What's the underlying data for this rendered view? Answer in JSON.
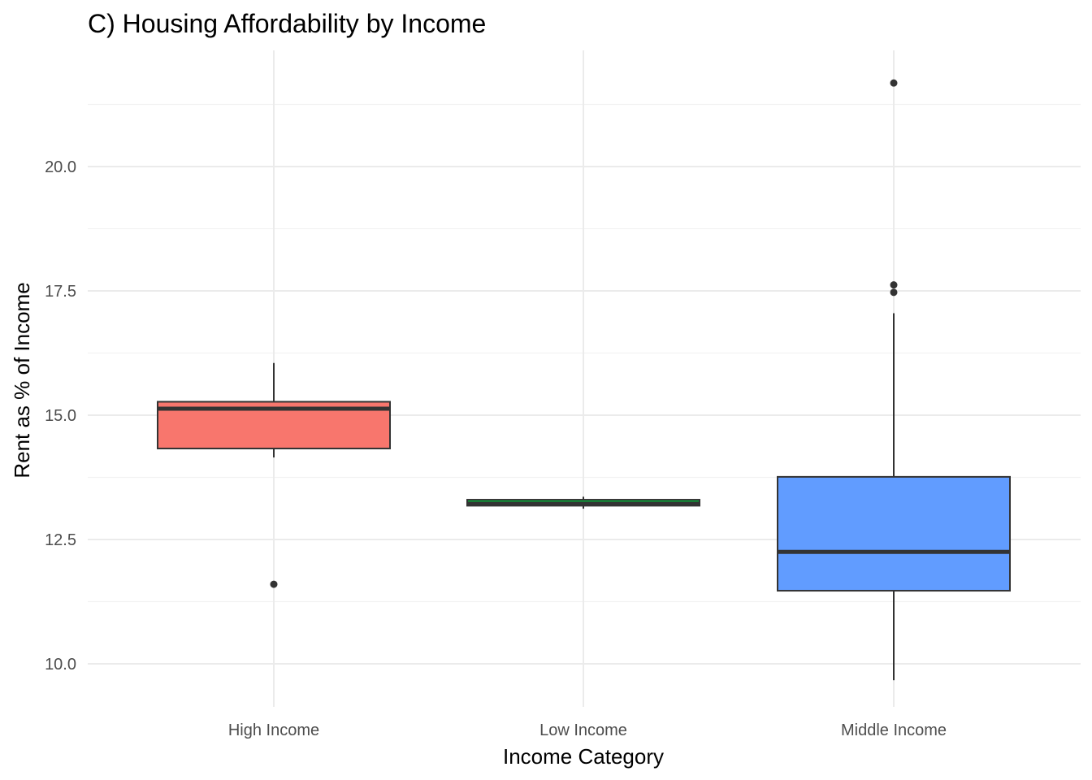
{
  "chart_data": {
    "type": "boxplot",
    "title": "C) Housing Affordability by Income",
    "xlabel": "Income Category",
    "ylabel": "Rent as % of Income",
    "categories": [
      "High Income",
      "Low Income",
      "Middle Income"
    ],
    "ylim": [
      9.3,
      22.4
    ],
    "y_ticks": [
      10.0,
      12.5,
      15.0,
      17.5,
      20.0
    ],
    "y_tick_labels": [
      "10.0",
      "12.5",
      "15.0",
      "17.5",
      "20.0"
    ],
    "y_minor_ticks": [
      11.25,
      13.75,
      16.25,
      18.75,
      21.25
    ],
    "grid": true,
    "legend": "none",
    "boxes": [
      {
        "category": "High Income",
        "color": "#F8766D",
        "whisker_low": 14.15,
        "q1": 14.33,
        "median": 15.13,
        "q3": 15.27,
        "whisker_high": 16.05,
        "outliers": [
          11.6
        ]
      },
      {
        "category": "Low Income",
        "color": "#00BA38",
        "whisker_low": 13.12,
        "q1": 13.18,
        "median": 13.22,
        "q3": 13.3,
        "whisker_high": 13.36,
        "outliers": []
      },
      {
        "category": "Middle Income",
        "color": "#619CFF",
        "whisker_low": 9.67,
        "q1": 11.47,
        "median": 12.25,
        "q3": 13.76,
        "whisker_high": 17.05,
        "outliers": [
          17.47,
          17.62,
          21.68
        ]
      }
    ]
  }
}
